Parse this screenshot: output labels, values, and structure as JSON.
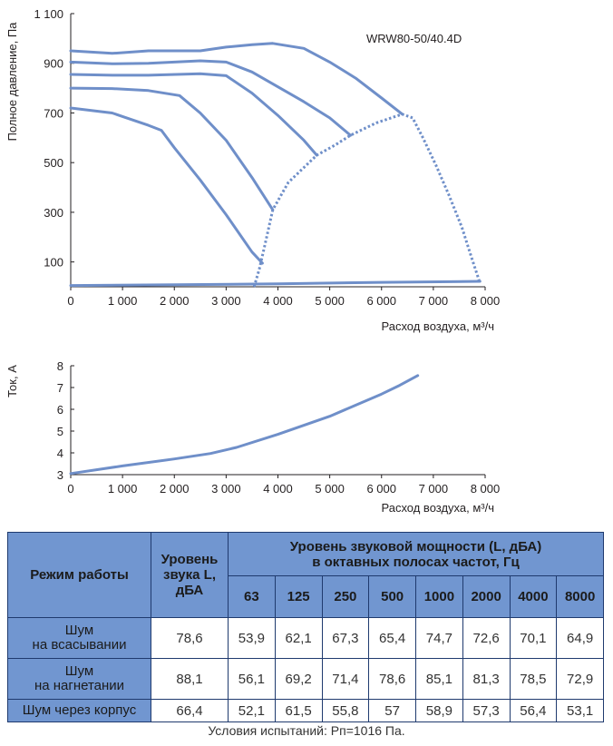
{
  "chart_data": [
    {
      "type": "line",
      "model_label": "WRW80-50/40.4D",
      "ylabel": "Полное давление, Па",
      "xlabel": "Расход воздуха, м³/ч",
      "xlim": [
        0,
        8000
      ],
      "ylim": [
        0,
        1100
      ],
      "x_ticks": [
        "0",
        "1 000",
        "2 000",
        "3 000",
        "4 000",
        "5 000",
        "6 000",
        "7 000",
        "8 000"
      ],
      "y_ticks": [
        "100",
        "300",
        "500",
        "700",
        "900",
        "1 100"
      ],
      "y_tick_values": [
        100,
        300,
        500,
        700,
        900,
        1100
      ],
      "x_tick_values": [
        0,
        1000,
        2000,
        3000,
        4000,
        5000,
        6000,
        7000,
        8000
      ],
      "grid": false,
      "series": [
        {
          "style": "solid",
          "points": [
            [
              0,
              950
            ],
            [
              800,
              940
            ],
            [
              1500,
              950
            ],
            [
              2500,
              950
            ],
            [
              3000,
              965
            ],
            [
              3500,
              975
            ],
            [
              3900,
              980
            ],
            [
              4500,
              960
            ],
            [
              5000,
              905
            ],
            [
              5500,
              840
            ],
            [
              6000,
              760
            ],
            [
              6400,
              695
            ]
          ]
        },
        {
          "style": "solid",
          "points": [
            [
              0,
              905
            ],
            [
              800,
              898
            ],
            [
              1500,
              900
            ],
            [
              2500,
              910
            ],
            [
              3000,
              905
            ],
            [
              3500,
              865
            ],
            [
              4000,
              805
            ],
            [
              4500,
              745
            ],
            [
              5000,
              680
            ],
            [
              5400,
              610
            ]
          ]
        },
        {
          "style": "solid",
          "points": [
            [
              0,
              855
            ],
            [
              800,
              852
            ],
            [
              1500,
              852
            ],
            [
              2500,
              858
            ],
            [
              3000,
              850
            ],
            [
              3500,
              780
            ],
            [
              4000,
              690
            ],
            [
              4500,
              590
            ],
            [
              4750,
              530
            ]
          ]
        },
        {
          "style": "solid",
          "points": [
            [
              0,
              800
            ],
            [
              800,
              798
            ],
            [
              1500,
              790
            ],
            [
              2100,
              770
            ],
            [
              2500,
              700
            ],
            [
              3000,
              590
            ],
            [
              3500,
              440
            ],
            [
              3900,
              310
            ]
          ]
        },
        {
          "style": "solid",
          "points": [
            [
              0,
              720
            ],
            [
              800,
              700
            ],
            [
              1500,
              650
            ],
            [
              1750,
              630
            ],
            [
              2000,
              560
            ],
            [
              2500,
              430
            ],
            [
              3000,
              290
            ],
            [
              3500,
              140
            ],
            [
              3700,
              95
            ]
          ]
        },
        {
          "style": "dotted",
          "points": [
            [
              3540,
              0
            ],
            [
              3640,
              70
            ],
            [
              3750,
              170
            ],
            [
              3900,
              310
            ],
            [
              4200,
              420
            ],
            [
              4750,
              530
            ],
            [
              5100,
              570
            ],
            [
              5400,
              610
            ],
            [
              5900,
              660
            ],
            [
              6400,
              695
            ],
            [
              6600,
              680
            ],
            [
              6800,
              600
            ],
            [
              7050,
              490
            ],
            [
              7300,
              370
            ],
            [
              7550,
              240
            ],
            [
              7750,
              110
            ],
            [
              7900,
              15
            ]
          ]
        },
        {
          "style": "solid",
          "points": [
            [
              0,
              5
            ],
            [
              2000,
              8
            ],
            [
              4000,
              12
            ],
            [
              6000,
              18
            ],
            [
              7900,
              22
            ]
          ]
        }
      ]
    },
    {
      "type": "line",
      "ylabel": "Ток, А",
      "xlabel": "Расход воздуха, м³/ч",
      "xlim": [
        0,
        8000
      ],
      "ylim": [
        3,
        8
      ],
      "x_ticks": [
        "0",
        "1 000",
        "2 000",
        "3 000",
        "4 000",
        "5 000",
        "6 000",
        "7 000",
        "8 000"
      ],
      "y_ticks": [
        "3",
        "4",
        "5",
        "6",
        "7",
        "8"
      ],
      "y_tick_values": [
        3,
        4,
        5,
        6,
        7,
        8
      ],
      "x_tick_values": [
        0,
        1000,
        2000,
        3000,
        4000,
        5000,
        6000,
        7000,
        8000
      ],
      "grid": false,
      "series": [
        {
          "style": "solid",
          "points": [
            [
              0,
              3.05
            ],
            [
              1000,
              3.4
            ],
            [
              2000,
              3.72
            ],
            [
              2700,
              3.97
            ],
            [
              3200,
              4.25
            ],
            [
              4000,
              4.85
            ],
            [
              5000,
              5.68
            ],
            [
              6000,
              6.7
            ],
            [
              6350,
              7.1
            ],
            [
              6700,
              7.55
            ]
          ]
        }
      ]
    }
  ],
  "colors": {
    "curve": "#6f8fc9",
    "axis": "#231f20",
    "table_header": "#7196d0",
    "table_border": "#1f3a6e"
  },
  "table": {
    "mode_header": "Режим работы",
    "level_header": [
      "Уровень",
      "звука L,",
      "дБА"
    ],
    "power_header": [
      "Уровень звуковой мощности (L, дБА)",
      "в октавных полосах частот, Гц"
    ],
    "freqs": [
      "63",
      "125",
      "250",
      "500",
      "1000",
      "2000",
      "4000",
      "8000"
    ],
    "rows": [
      {
        "label": [
          "Шум",
          "на всасывании"
        ],
        "level": "78,6",
        "values": [
          "53,9",
          "62,1",
          "67,3",
          "65,4",
          "74,7",
          "72,6",
          "70,1",
          "64,9"
        ]
      },
      {
        "label": [
          "Шум",
          "на нагнетании"
        ],
        "level": "88,1",
        "values": [
          "56,1",
          "69,2",
          "71,4",
          "78,6",
          "85,1",
          "81,3",
          "78,5",
          "72,9"
        ]
      },
      {
        "label": [
          "Шум через корпус"
        ],
        "level": "66,4",
        "values": [
          "52,1",
          "61,5",
          "55,8",
          "57",
          "58,9",
          "57,3",
          "56,4",
          "53,1"
        ]
      }
    ]
  },
  "caption": "Условия испытаний: Рп=1016 Па."
}
